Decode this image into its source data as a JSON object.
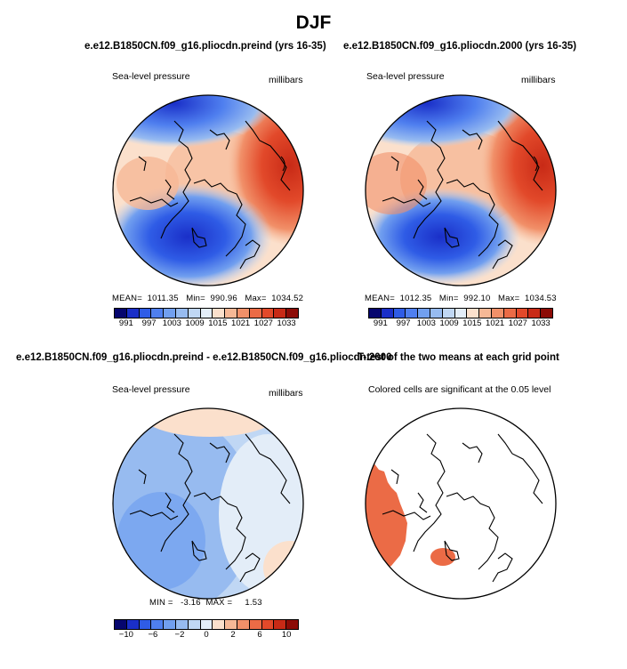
{
  "figure": {
    "title": "DJF"
  },
  "panels": [
    {
      "id": "preind",
      "title": "e.e12.B1850CN.f09_g16.pliocdn.preind (yrs 16-35)",
      "variable_label": "Sea-level pressure",
      "units_label": "millibars",
      "stats": "MEAN=  1011.35   Min=  990.96   Max=  1034.52",
      "colorbar": {
        "colors": [
          "#06066e",
          "#1a2fc8",
          "#2f5ce6",
          "#4f7fef",
          "#719fef",
          "#97bbf0",
          "#c0d7f4",
          "#e3edf8",
          "#fbe0cc",
          "#f6b896",
          "#f19069",
          "#eb6b46",
          "#e2492a",
          "#c82a16",
          "#8c0b06"
        ],
        "labels": [
          "991",
          "997",
          "1003",
          "1009",
          "1015",
          "1021",
          "1027",
          "1033"
        ]
      }
    },
    {
      "id": "plio2000",
      "title": "e.e12.B1850CN.f09_g16.pliocdn.2000 (yrs 16-35)",
      "variable_label": "Sea-level pressure",
      "units_label": "millibars",
      "stats": "MEAN=  1012.35   Min=  992.10   Max=  1034.53",
      "colorbar": {
        "colors": [
          "#06066e",
          "#1a2fc8",
          "#2f5ce6",
          "#4f7fef",
          "#719fef",
          "#97bbf0",
          "#c0d7f4",
          "#e3edf8",
          "#fbe0cc",
          "#f6b896",
          "#f19069",
          "#eb6b46",
          "#e2492a",
          "#c82a16",
          "#8c0b06"
        ],
        "labels": [
          "991",
          "997",
          "1003",
          "1009",
          "1015",
          "1021",
          "1027",
          "1033"
        ]
      }
    },
    {
      "id": "diff",
      "title": "e.e12.B1850CN.f09_g16.pliocdn.preind - e.e12.B1850CN.f09_g16.pliocdn.2000",
      "variable_label": "Sea-level pressure",
      "units_label": "millibars",
      "stats": "MIN =   -3.16  MAX =     1.53",
      "colorbar": {
        "colors": [
          "#06066e",
          "#1a2fc8",
          "#2f5ce6",
          "#4f7fef",
          "#719fef",
          "#97bbf0",
          "#c0d7f4",
          "#e3edf8",
          "#fbe0cc",
          "#f6b896",
          "#f19069",
          "#eb6b46",
          "#e2492a",
          "#c82a16",
          "#8c0b06"
        ],
        "labels": [
          "−10",
          "−6",
          "−2",
          "0",
          "2",
          "6",
          "10"
        ]
      }
    },
    {
      "id": "ttest",
      "title": "T-test of the two means at each grid point",
      "subtitle": "Colored cells are significant at the 0.05 level"
    }
  ]
}
